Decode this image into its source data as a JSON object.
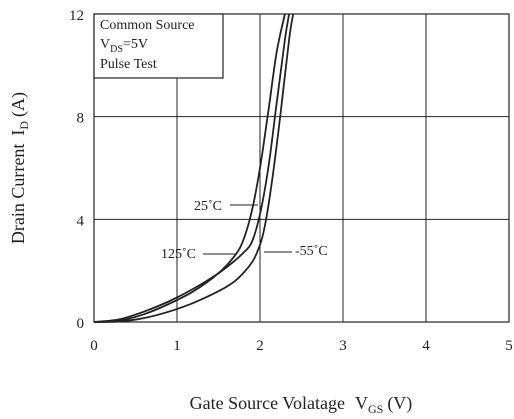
{
  "chart_data": {
    "type": "line",
    "xlabel_main": "Gate Source Volatage",
    "xlabel_sym": "V",
    "xlabel_sub": "GS",
    "xlabel_unit": "(V)",
    "ylabel_main": "Drain Current",
    "ylabel_sym": "I",
    "ylabel_sub": "D",
    "ylabel_unit": "(A)",
    "xlim": [
      0,
      5
    ],
    "ylim": [
      0,
      12
    ],
    "x_ticks": [
      "0",
      "1",
      "2",
      "3",
      "4",
      "5"
    ],
    "y_ticks": [
      "0",
      "4",
      "8",
      "12"
    ],
    "grid": true,
    "legend_box": {
      "line1": "Common Source",
      "line2_sym": "V",
      "line2_sub": "DS",
      "line2_val": "=5V",
      "line3": "Pulse Test"
    },
    "series": [
      {
        "name": "25˚C",
        "x": [
          0,
          0.3,
          0.6,
          0.9,
          1.2,
          1.5,
          1.7,
          1.8,
          1.9,
          2.0,
          2.1,
          2.2,
          2.3
        ],
        "y": [
          0,
          0.05,
          0.3,
          0.7,
          1.2,
          1.9,
          2.6,
          3.2,
          4.3,
          6.0,
          8.2,
          10.5,
          12.0
        ]
      },
      {
        "name": "125˚C",
        "x": [
          0,
          0.3,
          0.6,
          0.9,
          1.2,
          1.5,
          1.7,
          1.8,
          1.9,
          2.0,
          2.1,
          2.2,
          2.3,
          2.35
        ],
        "y": [
          0,
          0.1,
          0.4,
          0.8,
          1.3,
          1.9,
          2.4,
          2.7,
          3.1,
          4.2,
          6.0,
          8.5,
          11.0,
          12.0
        ]
      },
      {
        "name": "-55˚C",
        "x": [
          0,
          0.3,
          0.6,
          0.9,
          1.2,
          1.5,
          1.7,
          1.85,
          1.95,
          2.05,
          2.15,
          2.25,
          2.35,
          2.4
        ],
        "y": [
          0,
          0.02,
          0.15,
          0.4,
          0.75,
          1.2,
          1.6,
          2.1,
          2.6,
          3.6,
          5.6,
          8.2,
          11.0,
          12.0
        ]
      }
    ]
  }
}
